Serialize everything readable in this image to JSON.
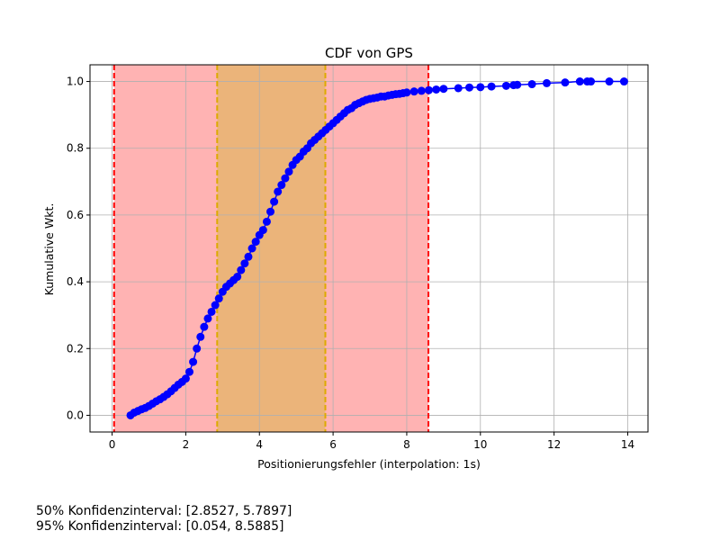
{
  "chart_data": {
    "type": "line",
    "title": "CDF von GPS",
    "xlabel": "Positionierungsfehler (interpolation: 1s)",
    "ylabel": "Kumulative Wkt.",
    "xlim": [
      -0.6,
      14.55
    ],
    "ylim": [
      -0.05,
      1.05
    ],
    "xticks": [
      0,
      2,
      4,
      6,
      8,
      10,
      12,
      14
    ],
    "yticks": [
      0.0,
      0.2,
      0.4,
      0.6,
      0.8,
      1.0
    ],
    "grid": true,
    "series": [
      {
        "color": "#0000ff",
        "marker": "circle",
        "x": [
          0.5,
          0.6,
          0.7,
          0.8,
          0.9,
          1.0,
          1.1,
          1.2,
          1.3,
          1.4,
          1.5,
          1.6,
          1.7,
          1.8,
          1.9,
          2.0,
          2.1,
          2.2,
          2.3,
          2.4,
          2.5,
          2.6,
          2.7,
          2.8,
          2.9,
          3.0,
          3.1,
          3.2,
          3.3,
          3.4,
          3.5,
          3.6,
          3.7,
          3.8,
          3.9,
          4.0,
          4.1,
          4.2,
          4.3,
          4.4,
          4.5,
          4.6,
          4.7,
          4.8,
          4.9,
          5.0,
          5.1,
          5.2,
          5.3,
          5.4,
          5.5,
          5.6,
          5.7,
          5.8,
          5.9,
          6.0,
          6.1,
          6.2,
          6.3,
          6.4,
          6.5,
          6.6,
          6.7,
          6.8,
          6.9,
          7.0,
          7.1,
          7.2,
          7.3,
          7.4,
          7.5,
          7.6,
          7.7,
          7.8,
          7.9,
          8.0,
          8.2,
          8.4,
          8.6,
          8.8,
          9.0,
          9.4,
          9.7,
          10.0,
          10.3,
          10.7,
          10.9,
          11.0,
          11.4,
          11.8,
          12.3,
          12.7,
          12.9,
          13.0,
          13.5,
          13.9
        ],
        "y": [
          0.0,
          0.008,
          0.013,
          0.018,
          0.022,
          0.028,
          0.035,
          0.042,
          0.048,
          0.055,
          0.063,
          0.072,
          0.082,
          0.092,
          0.1,
          0.11,
          0.13,
          0.16,
          0.2,
          0.235,
          0.265,
          0.29,
          0.31,
          0.33,
          0.35,
          0.37,
          0.385,
          0.395,
          0.405,
          0.415,
          0.435,
          0.455,
          0.475,
          0.5,
          0.52,
          0.54,
          0.555,
          0.58,
          0.61,
          0.64,
          0.67,
          0.69,
          0.71,
          0.73,
          0.75,
          0.765,
          0.775,
          0.79,
          0.8,
          0.815,
          0.825,
          0.835,
          0.845,
          0.855,
          0.865,
          0.875,
          0.885,
          0.895,
          0.905,
          0.915,
          0.92,
          0.93,
          0.935,
          0.94,
          0.945,
          0.948,
          0.95,
          0.952,
          0.955,
          0.955,
          0.958,
          0.96,
          0.962,
          0.963,
          0.965,
          0.967,
          0.97,
          0.972,
          0.974,
          0.976,
          0.978,
          0.98,
          0.982,
          0.983,
          0.985,
          0.987,
          0.989,
          0.99,
          0.992,
          0.995,
          0.997,
          1.0,
          1.0,
          1.0,
          1.0,
          1.0
        ]
      }
    ],
    "intervals": [
      {
        "level": "95%",
        "x": [
          0.054,
          8.5885
        ],
        "fill": "#ffb3b3",
        "line": "#ff0000"
      },
      {
        "level": "50%",
        "x": [
          2.8527,
          5.7897
        ],
        "fill": "#ebb47a",
        "line": "#ddaa00"
      }
    ]
  },
  "notes": {
    "ci50": "50% Konfidenzinterval: [2.8527, 5.7897]",
    "ci95": "95% Konfidenzinterval: [0.054, 8.5885]"
  }
}
